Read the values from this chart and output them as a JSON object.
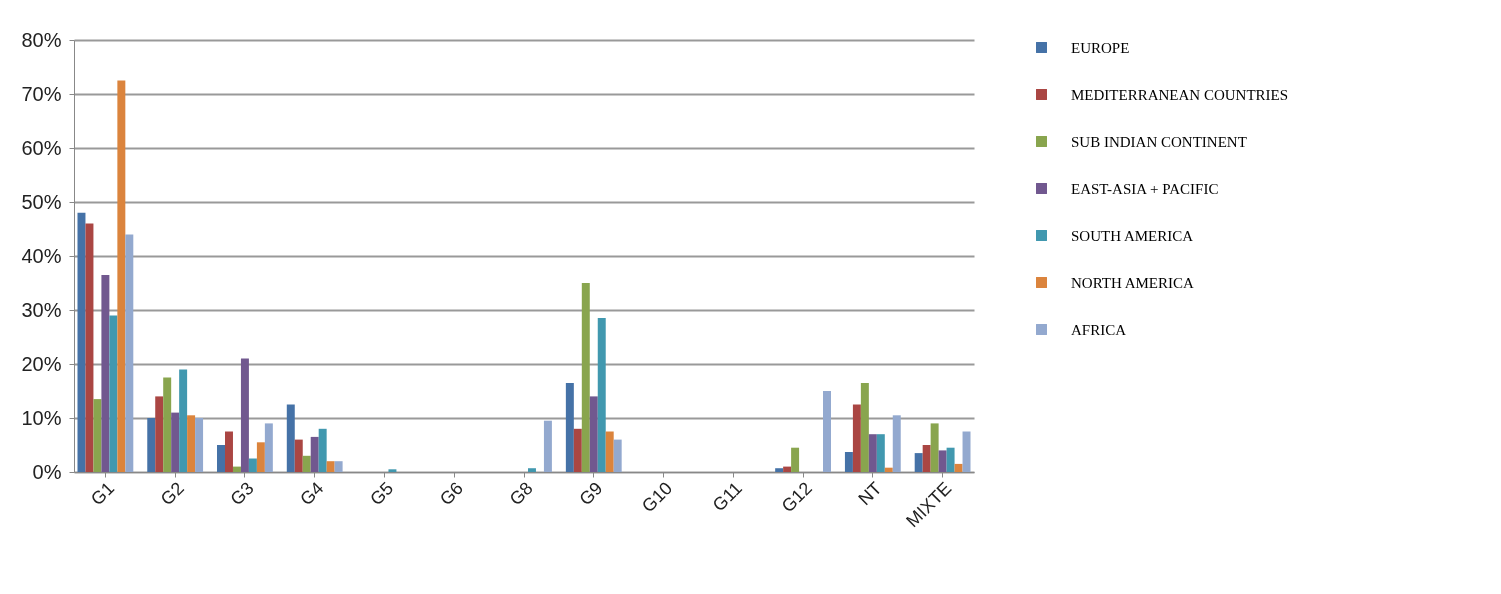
{
  "chart_data": {
    "type": "bar",
    "categories": [
      "G1",
      "G2",
      "G3",
      "G4",
      "G5",
      "G6",
      "G8",
      "G9",
      "G10",
      "G11",
      "G12",
      "NT",
      "MIXTE"
    ],
    "series": [
      {
        "name": "EUROPE",
        "color": "#4572a7",
        "values": [
          48,
          10,
          5,
          12.5,
          0,
          0,
          0,
          16.5,
          0,
          0,
          0.7,
          3.7,
          3.5
        ]
      },
      {
        "name": "MEDITERRANEAN COUNTRIES",
        "color": "#aa4643",
        "values": [
          46,
          14,
          7.5,
          6,
          0,
          0,
          0,
          8,
          0,
          0,
          1,
          12.5,
          5
        ]
      },
      {
        "name": "SUB INDIAN CONTINENT",
        "color": "#89a54e",
        "values": [
          13.5,
          17.5,
          1,
          3,
          0,
          0,
          0,
          35,
          0,
          0,
          4.5,
          16.5,
          9
        ]
      },
      {
        "name": "EAST-ASIA + PACIFIC",
        "color": "#71588f",
        "values": [
          36.5,
          11,
          21,
          6.5,
          0,
          0,
          0,
          14,
          0,
          0,
          0,
          7,
          4
        ]
      },
      {
        "name": "SOUTH AMERICA",
        "color": "#4198af",
        "values": [
          29,
          19,
          2.5,
          8,
          0.5,
          0,
          0.7,
          28.5,
          0,
          0,
          0,
          7,
          4.5
        ]
      },
      {
        "name": "NORTH AMERICA",
        "color": "#db843d",
        "values": [
          72.5,
          10.5,
          5.5,
          2,
          0,
          0,
          0,
          7.5,
          0,
          0,
          0,
          0.8,
          1.5
        ]
      },
      {
        "name": "AFRICA",
        "color": "#93a9cf",
        "values": [
          44,
          10,
          9,
          2,
          0,
          0,
          9.5,
          6,
          0,
          0,
          15,
          10.5,
          7.5
        ]
      }
    ],
    "ylim": [
      0,
      80
    ],
    "yticks": [
      {
        "value": 0,
        "label": "0%"
      },
      {
        "value": 10,
        "label": "10%"
      },
      {
        "value": 20,
        "label": "20%"
      },
      {
        "value": 30,
        "label": "30%"
      },
      {
        "value": 40,
        "label": "40%"
      },
      {
        "value": 50,
        "label": "50%"
      },
      {
        "value": 60,
        "label": "60%"
      },
      {
        "value": 70,
        "label": "70%"
      },
      {
        "value": 80,
        "label": "80%"
      }
    ],
    "grid": "y",
    "legend": "right"
  }
}
